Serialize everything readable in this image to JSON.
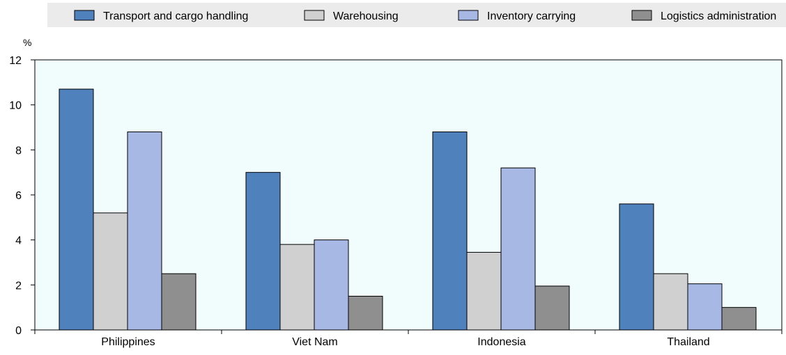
{
  "chart_data": {
    "type": "bar",
    "unit_label": "%",
    "categories": [
      "Philippines",
      "Viet Nam",
      "Indonesia",
      "Thailand"
    ],
    "series": [
      {
        "name": "Transport and cargo handling",
        "values": [
          10.7,
          7.0,
          8.8,
          5.6
        ],
        "color": "#4f81bd"
      },
      {
        "name": "Warehousing",
        "values": [
          5.2,
          3.8,
          3.45,
          2.5
        ],
        "color": "#d0d0d0"
      },
      {
        "name": "Inventory carrying",
        "values": [
          8.8,
          4.0,
          7.2,
          2.05
        ],
        "color": "#a6b8e3"
      },
      {
        "name": "Logistics administration",
        "values": [
          2.5,
          1.5,
          1.95,
          1.0
        ],
        "color": "#8f8f8f"
      }
    ],
    "yticks": [
      0,
      2,
      4,
      6,
      8,
      10,
      12
    ],
    "ylim": [
      0,
      12
    ],
    "legend_position": "top",
    "plot_background": "#f1fdfd",
    "legend_background": "#ebebeb"
  }
}
